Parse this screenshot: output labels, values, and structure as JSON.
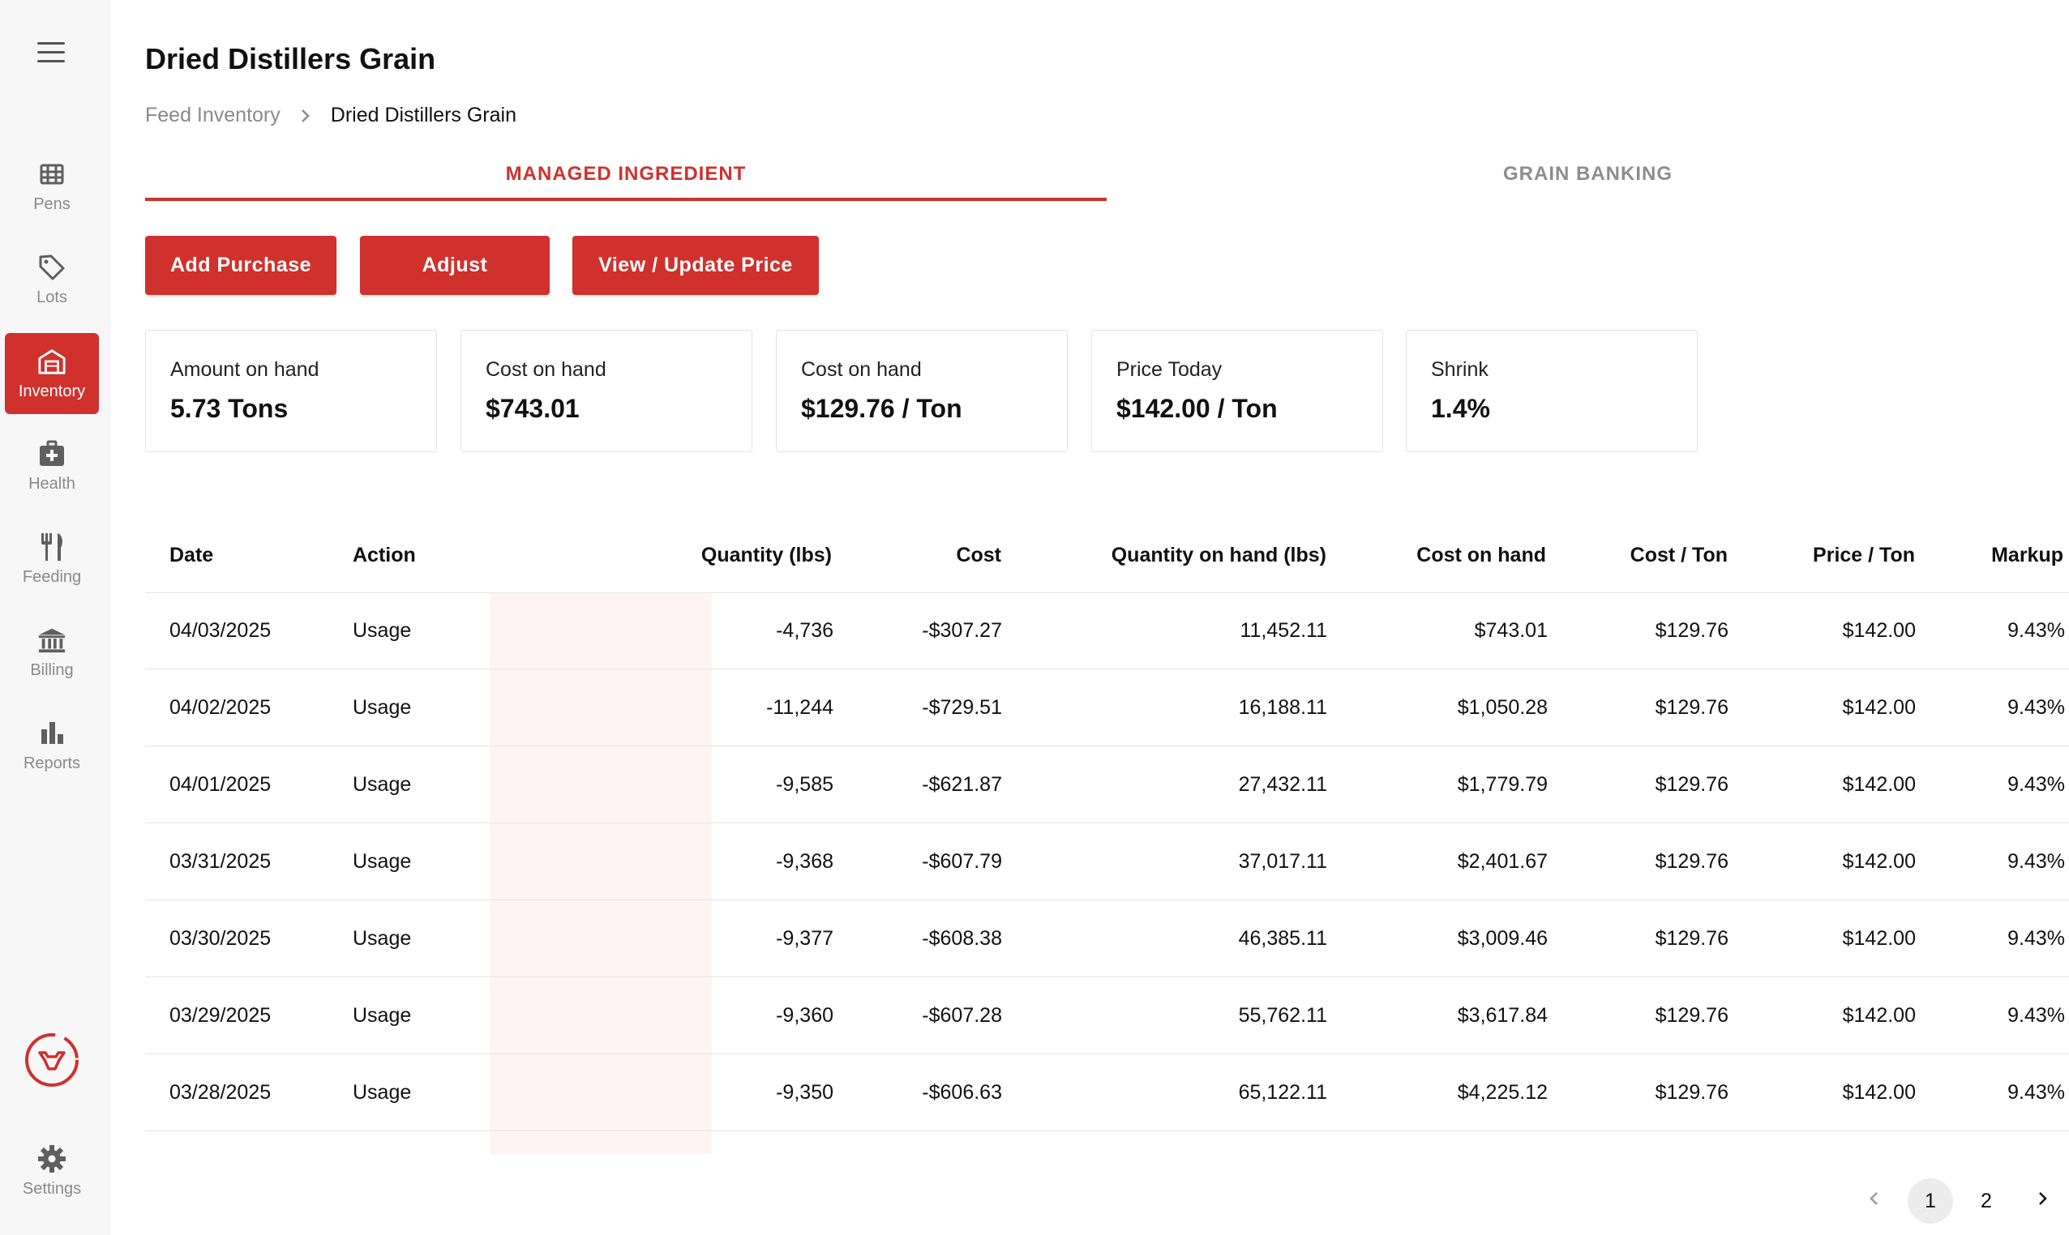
{
  "sidebar": {
    "items": [
      {
        "label": "Pens",
        "icon": "grid-icon"
      },
      {
        "label": "Lots",
        "icon": "tag-icon"
      },
      {
        "label": "Inventory",
        "icon": "barn-icon",
        "active": true
      },
      {
        "label": "Health",
        "icon": "medkit-icon"
      },
      {
        "label": "Feeding",
        "icon": "utensils-icon"
      },
      {
        "label": "Billing",
        "icon": "bank-icon"
      },
      {
        "label": "Reports",
        "icon": "bar-chart-icon"
      }
    ],
    "settings_label": "Settings",
    "accent_color": "#d0312d"
  },
  "header": {
    "title": "Dried Distillers Grain",
    "breadcrumb": {
      "parent": "Feed Inventory",
      "current": "Dried Distillers Grain"
    }
  },
  "tabs": [
    {
      "label": "MANAGED INGREDIENT",
      "active": true
    },
    {
      "label": "GRAIN BANKING",
      "active": false
    }
  ],
  "actions": {
    "add_purchase": "Add Purchase",
    "adjust": "Adjust",
    "view_update_price": "View / Update Price"
  },
  "stats": [
    {
      "label": "Amount on hand",
      "value": "5.73 Tons"
    },
    {
      "label": "Cost on hand",
      "value": "$743.01"
    },
    {
      "label": "Cost on hand",
      "value": "$129.76 / Ton"
    },
    {
      "label": "Price Today",
      "value": "$142.00 / Ton"
    },
    {
      "label": "Shrink",
      "value": "1.4%"
    }
  ],
  "table": {
    "columns": [
      "Date",
      "Action",
      "Quantity (lbs)",
      "Cost",
      "Quantity on hand (lbs)",
      "Cost on hand",
      "Cost / Ton",
      "Price / Ton",
      "Markup"
    ],
    "rows": [
      [
        "04/03/2025",
        "Usage",
        "-4,736",
        "-$307.27",
        "11,452.11",
        "$743.01",
        "$129.76",
        "$142.00",
        "9.43%"
      ],
      [
        "04/02/2025",
        "Usage",
        "-11,244",
        "-$729.51",
        "16,188.11",
        "$1,050.28",
        "$129.76",
        "$142.00",
        "9.43%"
      ],
      [
        "04/01/2025",
        "Usage",
        "-9,585",
        "-$621.87",
        "27,432.11",
        "$1,779.79",
        "$129.76",
        "$142.00",
        "9.43%"
      ],
      [
        "03/31/2025",
        "Usage",
        "-9,368",
        "-$607.79",
        "37,017.11",
        "$2,401.67",
        "$129.76",
        "$142.00",
        "9.43%"
      ],
      [
        "03/30/2025",
        "Usage",
        "-9,377",
        "-$608.38",
        "46,385.11",
        "$3,009.46",
        "$129.76",
        "$142.00",
        "9.43%"
      ],
      [
        "03/29/2025",
        "Usage",
        "-9,360",
        "-$607.28",
        "55,762.11",
        "$3,617.84",
        "$129.76",
        "$142.00",
        "9.43%"
      ],
      [
        "03/28/2025",
        "Usage",
        "-9,350",
        "-$606.63",
        "65,122.11",
        "$4,225.12",
        "$129.76",
        "$142.00",
        "9.43%"
      ]
    ]
  },
  "pagination": {
    "pages": [
      "1",
      "2"
    ],
    "current": "1"
  }
}
